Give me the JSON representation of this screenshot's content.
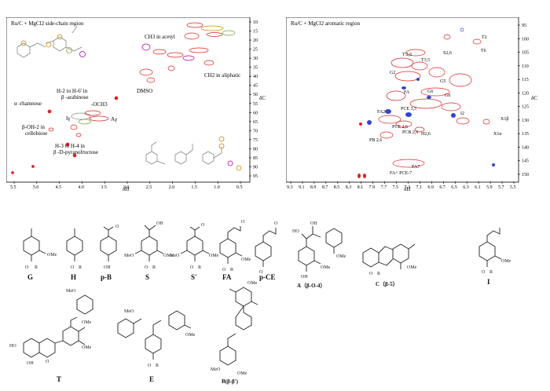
{
  "left_panel": {
    "title": "Ru/C + MgCl2 side-chain region",
    "x_axis_symbol": "δH",
    "y_axis_symbol": "δC",
    "x_ticks": [
      "5.5",
      "5.0",
      "4.5",
      "4.0",
      "3.5",
      "3.0",
      "2.5",
      "2.0",
      "1.5",
      "1.0",
      "0.5"
    ],
    "y_ticks": [
      "10",
      "15",
      "20",
      "25",
      "30",
      "35",
      "40",
      "45",
      "50",
      "55",
      "60",
      "65",
      "70",
      "75",
      "80",
      "85",
      "90",
      "95"
    ],
    "annotations": {
      "ch3_acetyl": "CH3 in  acetyl",
      "ch2_aliphatic": "CH2 in aliphatic",
      "dmso": "DMSO",
      "h2_h6": "H-2 to H-6' in",
      "arabinose": "β -arabinose",
      "rhamnose": "α -rhamnose",
      "och3": "-OCH3",
      "i_label": "Iγ",
      "a_label": "Aγ",
      "boh2": "β-OH-2 in",
      "cellobiose": "cellobiose",
      "h3_h4": "H-3 to H-4 in",
      "pyranofructose": "β -D-pyranofructose"
    }
  },
  "right_panel": {
    "title": "Ru/C + MgCl2 aromatic region",
    "x_axis_symbol": "δH",
    "y_axis_symbol": "δC",
    "x_ticks": [
      "9.3",
      "9.1",
      "8.9",
      "8.7",
      "8.5",
      "8.3",
      "8.1",
      "7.9",
      "7.7",
      "7.5",
      "7.3",
      "7.1",
      "6.9",
      "6.7",
      "6.5",
      "6.3",
      "6.1",
      "5.9",
      "5.7",
      "5.5"
    ],
    "y_ticks": [
      "95",
      "100",
      "105",
      "110",
      "115",
      "120",
      "125",
      "130",
      "135",
      "140",
      "145",
      "150"
    ],
    "annotations": {
      "t2": "T2",
      "s26": "S2,6",
      "t6": "T6",
      "t2_6": "T'2,6",
      "g2": "G2",
      "t3_5": "T3,5",
      "g5": "G5",
      "g6": "G6",
      "fa": "FA",
      "g6b": "G6",
      "p_ce": "PCE 3,5",
      "fa2": "FA2",
      "pcb26": "PCB 2,6",
      "h26": "H2,6",
      "i2": "I2",
      "x1a": "X1α",
      "x1b": "X1β",
      "pce26": "PCE 2,6",
      "pb": "PB 2,6",
      "fa_pce": "FA+ PCE-7",
      "fa7": "FA7"
    }
  },
  "structures": {
    "labels": [
      "G",
      "H",
      "p-B",
      "S",
      "S'",
      "FA",
      "p-CE",
      "A（β-O-4）",
      "C（β-5）",
      "I",
      "T",
      "E",
      "B(β-β')"
    ],
    "substituents": {
      "ome": "OMe",
      "meo": "MeO",
      "oh": "OH",
      "ho": "HO",
      "o": "O",
      "r": "R"
    }
  }
}
